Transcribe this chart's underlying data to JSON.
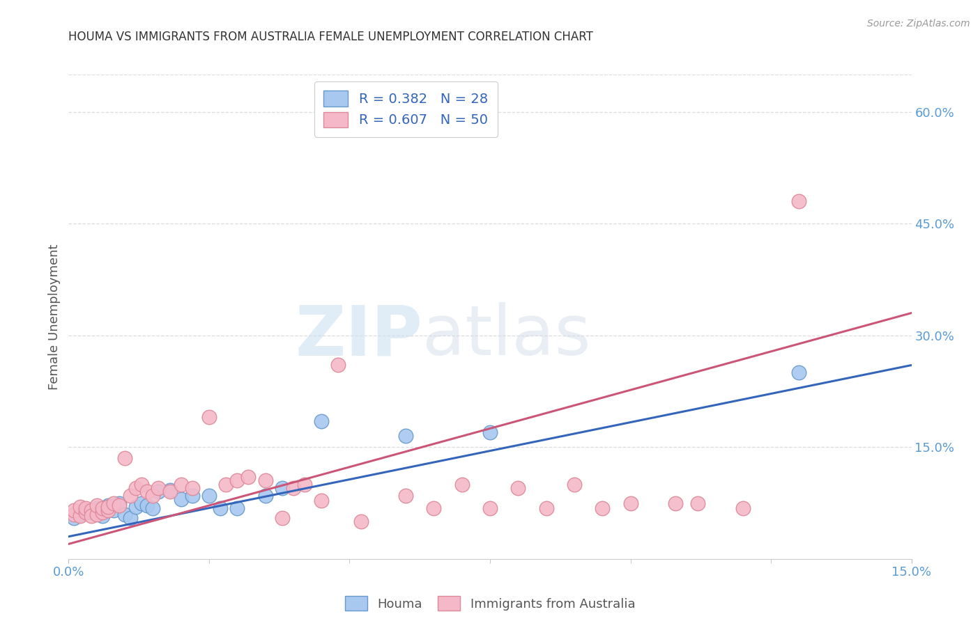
{
  "title": "HOUMA VS IMMIGRANTS FROM AUSTRALIA FEMALE UNEMPLOYMENT CORRELATION CHART",
  "source": "Source: ZipAtlas.com",
  "ylabel": "Female Unemployment",
  "xlim": [
    0.0,
    0.15
  ],
  "ylim": [
    0.0,
    0.65
  ],
  "x_ticks": [
    0.0,
    0.15
  ],
  "x_tick_labels": [
    "0.0%",
    "15.0%"
  ],
  "y_ticks_right": [
    0.15,
    0.3,
    0.45,
    0.6
  ],
  "y_tick_labels_right": [
    "15.0%",
    "30.0%",
    "45.0%",
    "60.0%"
  ],
  "houma_color": "#A8C8F0",
  "houma_edge_color": "#6699CC",
  "immigrants_color": "#F5B8C8",
  "immigrants_edge_color": "#DD8899",
  "trend_houma_color": "#3366BB",
  "trend_immigrants_color": "#CC5577",
  "legend_label_houma": "R = 0.382   N = 28",
  "legend_label_immigrants": "R = 0.607   N = 50",
  "legend_pos_houma": "Houma",
  "legend_pos_immigrants": "Immigrants from Australia",
  "watermark_zip": "ZIP",
  "watermark_atlas": "atlas",
  "background_color": "#FFFFFF",
  "grid_color": "#DDDDDD",
  "houma_x": [
    0.001,
    0.002,
    0.003,
    0.004,
    0.005,
    0.006,
    0.007,
    0.008,
    0.009,
    0.01,
    0.011,
    0.012,
    0.013,
    0.014,
    0.015,
    0.016,
    0.018,
    0.02,
    0.022,
    0.025,
    0.027,
    0.03,
    0.035,
    0.038,
    0.045,
    0.06,
    0.075,
    0.13
  ],
  "houma_y": [
    0.055,
    0.06,
    0.065,
    0.062,
    0.068,
    0.058,
    0.072,
    0.065,
    0.075,
    0.06,
    0.055,
    0.07,
    0.075,
    0.072,
    0.068,
    0.09,
    0.092,
    0.08,
    0.085,
    0.085,
    0.068,
    0.068,
    0.085,
    0.095,
    0.185,
    0.165,
    0.17,
    0.25
  ],
  "immigrants_x": [
    0.001,
    0.001,
    0.002,
    0.002,
    0.003,
    0.003,
    0.004,
    0.004,
    0.005,
    0.005,
    0.006,
    0.006,
    0.007,
    0.007,
    0.008,
    0.009,
    0.01,
    0.011,
    0.012,
    0.013,
    0.014,
    0.015,
    0.016,
    0.018,
    0.02,
    0.022,
    0.025,
    0.028,
    0.03,
    0.032,
    0.035,
    0.038,
    0.04,
    0.042,
    0.045,
    0.048,
    0.052,
    0.06,
    0.065,
    0.07,
    0.075,
    0.08,
    0.085,
    0.09,
    0.095,
    0.1,
    0.108,
    0.112,
    0.12,
    0.13
  ],
  "immigrants_y": [
    0.06,
    0.065,
    0.058,
    0.07,
    0.062,
    0.068,
    0.065,
    0.058,
    0.06,
    0.072,
    0.062,
    0.068,
    0.065,
    0.07,
    0.075,
    0.072,
    0.135,
    0.085,
    0.095,
    0.1,
    0.09,
    0.085,
    0.095,
    0.09,
    0.1,
    0.095,
    0.19,
    0.1,
    0.105,
    0.11,
    0.105,
    0.055,
    0.095,
    0.1,
    0.078,
    0.26,
    0.05,
    0.085,
    0.068,
    0.1,
    0.068,
    0.095,
    0.068,
    0.1,
    0.068,
    0.075,
    0.075,
    0.075,
    0.068,
    0.48
  ],
  "trend_houma_x0": 0.0,
  "trend_houma_y0": 0.03,
  "trend_houma_x1": 0.15,
  "trend_houma_y1": 0.26,
  "trend_imm_x0": 0.0,
  "trend_imm_y0": 0.02,
  "trend_imm_x1": 0.15,
  "trend_imm_y1": 0.33
}
